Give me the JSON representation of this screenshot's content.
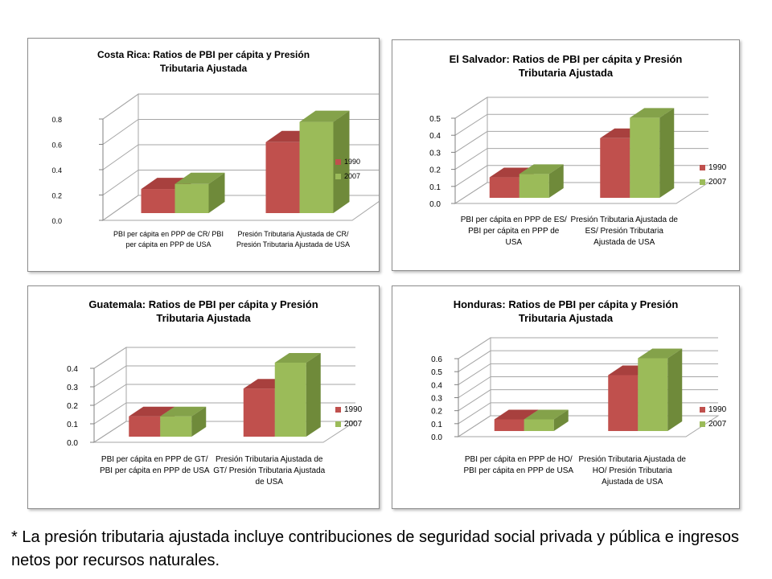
{
  "colors": {
    "series1990": "#c0504d",
    "series2007": "#9bbb59"
  },
  "footnote": "* La presión tributaria ajustada incluye contribuciones de seguridad social privada y pública e ingresos netos por recursos naturales.",
  "chart_data": [
    {
      "type": "bar",
      "title": "Costa Rica: Ratios de PBI per cápita y Presión Tributaria Ajustada",
      "categories": [
        "PBI per cápita en PPP de CR/ PBI per cápita en PPP de USA",
        "Presión Tributaria Ajustada de CR/ Presión Tributaria Ajustada de USA"
      ],
      "series": [
        {
          "name": "1990",
          "values": [
            0.19,
            0.56
          ]
        },
        {
          "name": "2007",
          "values": [
            0.23,
            0.72
          ]
        }
      ],
      "yticks": [
        "0.0",
        "0.2",
        "0.4",
        "0.6",
        "0.8"
      ],
      "ylim": [
        0,
        0.8
      ],
      "legend": "right",
      "grid": true
    },
    {
      "type": "bar",
      "title": "El Salvador: Ratios de PBI per cápita y Presión Tributaria Ajustada",
      "categories": [
        "PBI per cápita en PPP de ES/ PBI per cápita en PPP de USA",
        "Presión Tributaria Ajustada de ES/ Presión Tributaria Ajustada de USA"
      ],
      "series": [
        {
          "name": "1990",
          "values": [
            0.12,
            0.35
          ]
        },
        {
          "name": "2007",
          "values": [
            0.14,
            0.47
          ]
        }
      ],
      "yticks": [
        "0.0",
        "0.1",
        "0.2",
        "0.3",
        "0.4",
        "0.5"
      ],
      "ylim": [
        0,
        0.5
      ],
      "legend": "right",
      "grid": true
    },
    {
      "type": "bar",
      "title": "Guatemala: Ratios de PBI per cápita y Presión Tributaria Ajustada",
      "categories": [
        "PBI per cápita en PPP de GT/ PBI per cápita en PPP de USA",
        "Presión Tributaria Ajustada de GT/ Presión Tributaria Ajustada de USA"
      ],
      "series": [
        {
          "name": "1990",
          "values": [
            0.11,
            0.26
          ]
        },
        {
          "name": "2007",
          "values": [
            0.11,
            0.4
          ]
        }
      ],
      "yticks": [
        "0.0",
        "0.1",
        "0.2",
        "0.3",
        "0.4"
      ],
      "ylim": [
        0,
        0.4
      ],
      "legend": "right",
      "grid": true
    },
    {
      "type": "bar",
      "title": "Honduras: Ratios de PBI per cápita y Presión Tributaria Ajustada",
      "categories": [
        "PBI per cápita en PPP de HO/ PBI per cápita en PPP de USA",
        "Presión Tributaria Ajustada de HO/ Presión Tributaria Ajustada de USA"
      ],
      "series": [
        {
          "name": "1990",
          "values": [
            0.09,
            0.43
          ]
        },
        {
          "name": "2007",
          "values": [
            0.09,
            0.56
          ]
        }
      ],
      "yticks": [
        "0.0",
        "0.1",
        "0.2",
        "0.3",
        "0.4",
        "0.5",
        "0.6"
      ],
      "ylim": [
        0,
        0.6
      ],
      "legend": "right",
      "grid": true
    }
  ]
}
